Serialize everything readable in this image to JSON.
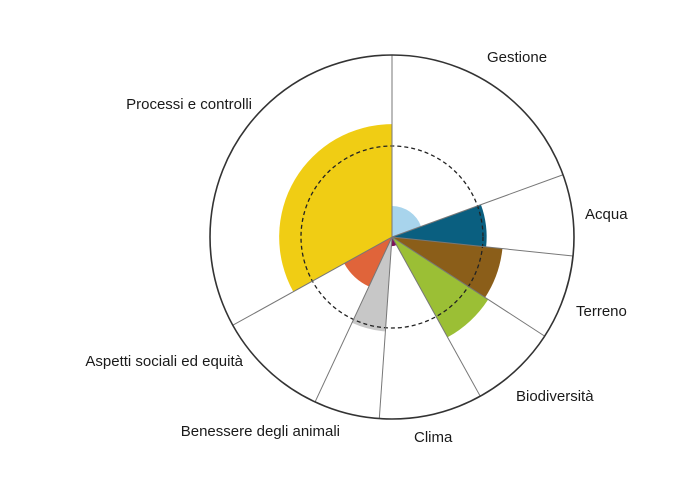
{
  "chart_data": {
    "type": "polar-area",
    "scale_max": 1.0,
    "reference_ring": 0.5,
    "grid": false,
    "sectors": [
      {
        "label": "Gestione",
        "value": 0.17,
        "color": "#a8d4ec"
      },
      {
        "label": "Acqua",
        "value": 0.52,
        "color": "#0a5f80"
      },
      {
        "label": "Terreno",
        "value": 0.61,
        "color": "#8b5e19"
      },
      {
        "label": "Biodiversità",
        "value": 0.63,
        "color": "#9bbf35"
      },
      {
        "label": "Clima",
        "value": 0.05,
        "color": "#7d1258"
      },
      {
        "label": "Benessere degli animali",
        "value": 0.52,
        "color": "#c7c7c7"
      },
      {
        "label": "Aspetti sociali ed equità",
        "value": 0.3,
        "color": "#e0643a"
      },
      {
        "label": "Processi e controlli",
        "value": 0.62,
        "color": "#f0cd14"
      }
    ]
  }
}
